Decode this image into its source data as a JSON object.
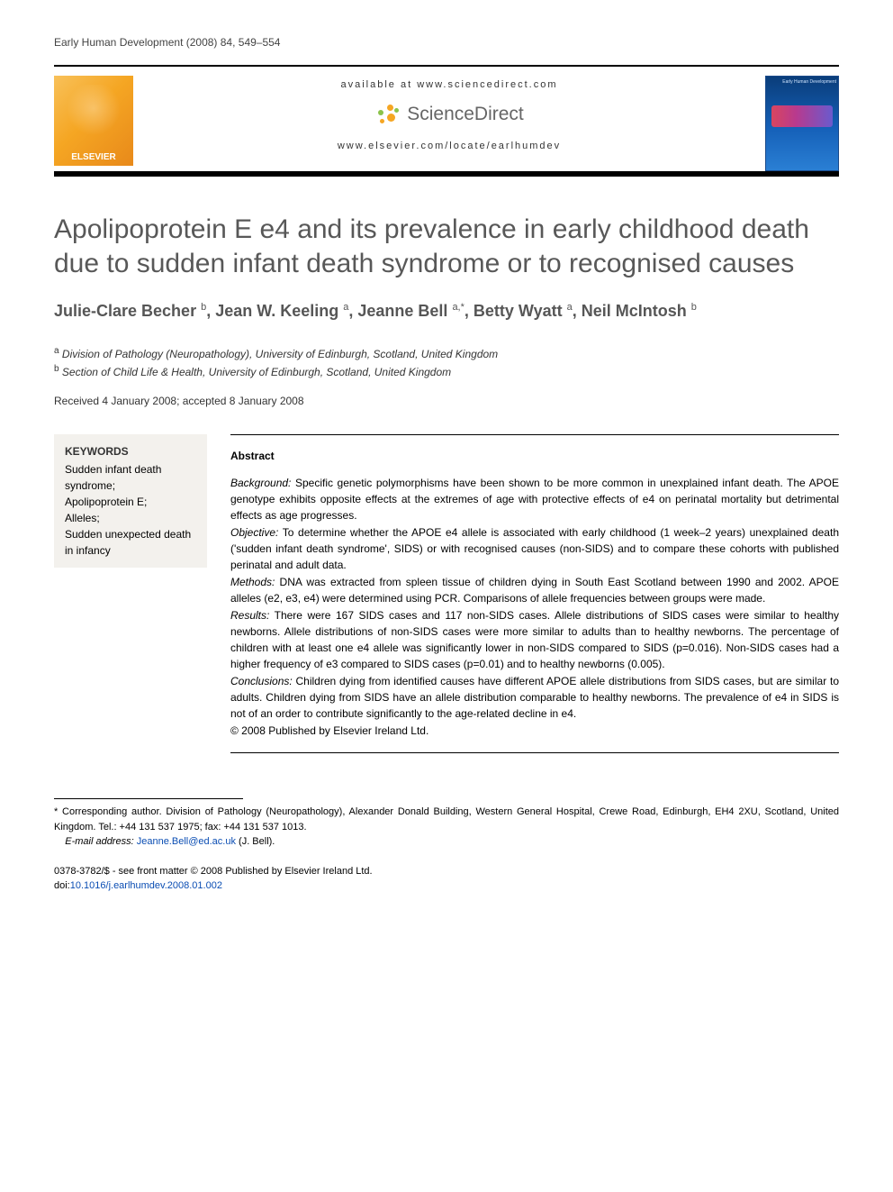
{
  "running_head": "Early Human Development (2008) 84, 549–554",
  "header": {
    "available_text": "available at www.sciencedirect.com",
    "sd_brand": "ScienceDirect",
    "locate_text": "www.elsevier.com/locate/earlhumdev",
    "elsevier_label": "ELSEVIER",
    "cover_tag": "Early Human\nDevelopment"
  },
  "title": "Apolipoprotein E e4 and its prevalence in early childhood death due to sudden infant death syndrome or to recognised causes",
  "authors_html": "Julie-Clare Becher <sup>b</sup>, Jean W. Keeling <sup>a</sup>, Jeanne Bell <sup>a,*</sup>, Betty Wyatt <sup>a</sup>, Neil McIntosh <sup>b</sup>",
  "affiliations": [
    {
      "marker": "a",
      "text": "Division of Pathology (Neuropathology), University of Edinburgh, Scotland, United Kingdom"
    },
    {
      "marker": "b",
      "text": "Section of Child Life & Health, University of Edinburgh, Scotland, United Kingdom"
    }
  ],
  "dates": "Received 4 January 2008; accepted 8 January 2008",
  "keywords": {
    "heading": "KEYWORDS",
    "items": [
      "Sudden infant death syndrome;",
      "Apolipoprotein E;",
      "Alleles;",
      "Sudden unexpected death in infancy"
    ]
  },
  "abstract": {
    "heading": "Abstract",
    "sections": [
      {
        "label": "Background:",
        "text": "Specific genetic polymorphisms have been shown to be more common in unexplained infant death. The APOE genotype exhibits opposite effects at the extremes of age with protective effects of e4 on perinatal mortality but detrimental effects as age progresses."
      },
      {
        "label": "Objective:",
        "text": "To determine whether the APOE e4 allele is associated with early childhood (1 week–2 years) unexplained death ('sudden infant death syndrome', SIDS) or with recognised causes (non-SIDS) and to compare these cohorts with published perinatal and adult data."
      },
      {
        "label": "Methods:",
        "text": "DNA was extracted from spleen tissue of children dying in South East Scotland between 1990 and 2002. APOE alleles (e2, e3, e4) were determined using PCR. Comparisons of allele frequencies between groups were made."
      },
      {
        "label": "Results:",
        "text": "There were 167 SIDS cases and 117 non-SIDS cases. Allele distributions of SIDS cases were similar to healthy newborns. Allele distributions of non-SIDS cases were more similar to adults than to healthy newborns. The percentage of children with at least one e4 allele was significantly lower in non-SIDS compared to SIDS (p=0.016). Non-SIDS cases had a higher frequency of e3 compared to SIDS cases (p=0.01) and to healthy newborns (0.005)."
      },
      {
        "label": "Conclusions:",
        "text": "Children dying from identified causes have different APOE allele distributions from SIDS cases, but are similar to adults. Children dying from SIDS have an allele distribution comparable to healthy newborns. The prevalence of e4 in SIDS is not of an order to contribute significantly to the age-related decline in e4."
      }
    ],
    "copyright_line": "© 2008 Published by Elsevier Ireland Ltd."
  },
  "footnotes": {
    "corresponding": "* Corresponding author. Division of Pathology (Neuropathology), Alexander Donald Building, Western General Hospital, Crewe Road, Edinburgh, EH4 2XU, Scotland, United Kingdom. Tel.: +44 131 537 1975; fax: +44 131 537 1013.",
    "email_label": "E-mail address:",
    "email": "Jeanne.Bell@ed.ac.uk",
    "email_suffix": "(J. Bell)."
  },
  "copyright": {
    "line1": "0378-3782/$ - see front matter © 2008 Published by Elsevier Ireland Ltd.",
    "doi_label": "doi:",
    "doi": "10.1016/j.earlhumdev.2008.01.002"
  },
  "colors": {
    "link": "#0a4db3",
    "title_gray": "#585858",
    "sd_orange": "#f5a623",
    "sd_green": "#8bc34a"
  }
}
